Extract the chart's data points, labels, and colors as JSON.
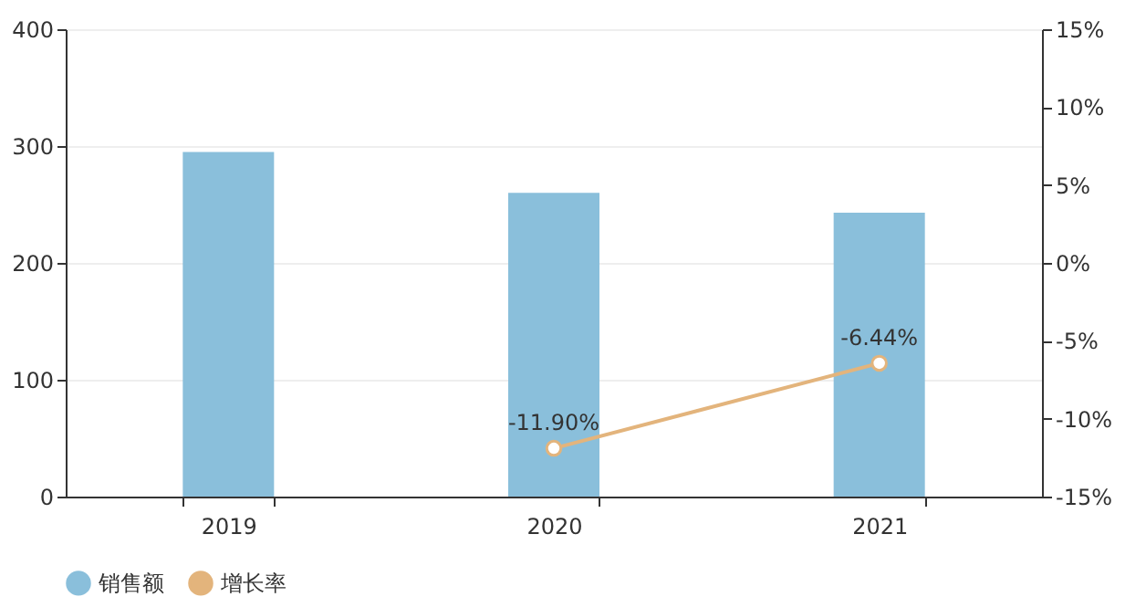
{
  "chart_data": {
    "type": "bar",
    "categories": [
      "2019",
      "2020",
      "2021"
    ],
    "series": [
      {
        "name": "销售额",
        "color": "#8abfdb",
        "values": [
          295,
          260,
          243
        ]
      },
      {
        "name": "增长率",
        "type": "line",
        "axis": "y2",
        "color": "#e3b47c",
        "values": [
          null,
          -11.9,
          -6.44
        ],
        "value_labels": [
          null,
          "-11.90%",
          "-6.44%"
        ]
      }
    ],
    "ylim": [
      0,
      400
    ],
    "yticks": [
      0,
      100,
      200,
      300,
      400
    ],
    "y2lim": [
      -15,
      15
    ],
    "y2ticks": [
      {
        "value": -15,
        "label": "-15%"
      },
      {
        "value": -10,
        "label": "-10%"
      },
      {
        "value": -5,
        "label": "-5%"
      },
      {
        "value": 0,
        "label": "0%"
      },
      {
        "value": 5,
        "label": "5%"
      },
      {
        "value": 10,
        "label": "10%"
      },
      {
        "value": 15,
        "label": "15%"
      }
    ],
    "grid": "y",
    "legend": "bottom",
    "marker": "circle",
    "line_style": "solid"
  }
}
